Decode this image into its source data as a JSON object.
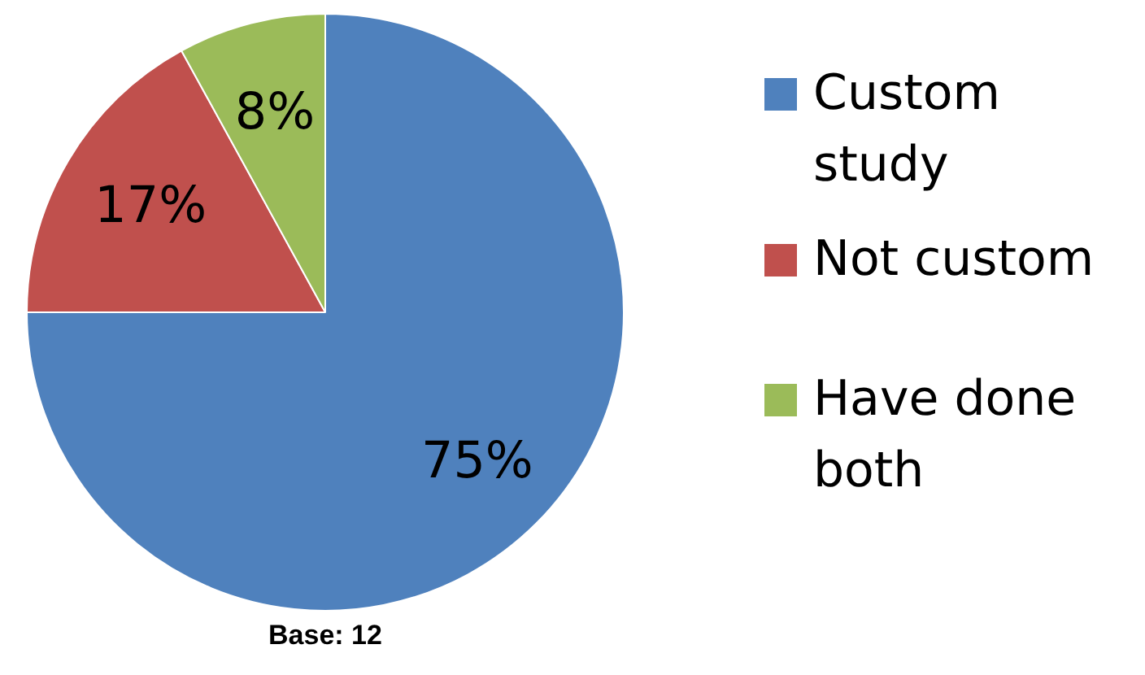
{
  "chart_data": {
    "type": "pie",
    "categories": [
      "Custom study",
      "Not custom",
      "Have done both"
    ],
    "values": [
      75,
      17,
      8
    ],
    "colors": [
      "#4f81bd",
      "#c0504d",
      "#9bbb59"
    ],
    "value_labels": [
      "75%",
      "17%",
      "8%"
    ],
    "legend": "right",
    "annotations": [
      "Base: 12"
    ]
  }
}
